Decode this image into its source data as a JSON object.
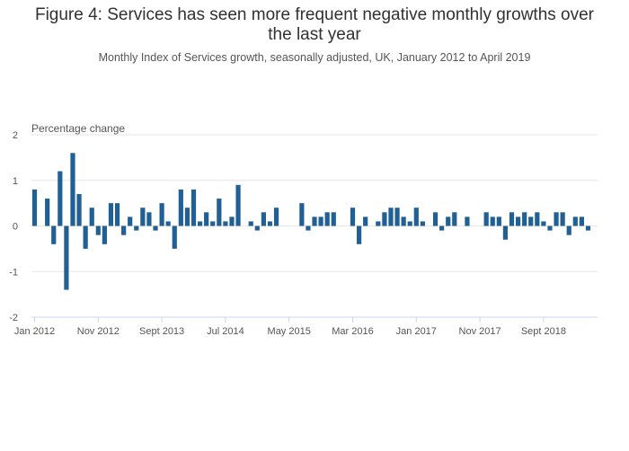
{
  "page": {
    "title_line1": "Figure 4: Services has seen more frequent negative monthly growths over",
    "title_line2": "the last year",
    "subtitle": "Monthly Index of Services growth, seasonally adjusted, UK, January 2012 to April 2019"
  },
  "colors": {
    "bar": "#206095",
    "grid": "#e6e6e6",
    "axis": "#ccd6eb"
  },
  "chart_data": {
    "type": "bar",
    "title": "Figure 4: Services has seen more frequent negative monthly growths over the last year",
    "subtitle": "Monthly Index of Services growth, seasonally adjusted, UK, January 2012 to April 2019",
    "ylabel": "Percentage change",
    "xlabel": "",
    "ylim": [
      -2,
      2
    ],
    "yticks": [
      2,
      1,
      0,
      -1,
      -2
    ],
    "grid": true,
    "legend": "none",
    "x_tick_labels": [
      {
        "index": 0,
        "label": "Jan 2012"
      },
      {
        "index": 10,
        "label": "Nov 2012"
      },
      {
        "index": 20,
        "label": "Sept 2013"
      },
      {
        "index": 30,
        "label": "Jul 2014"
      },
      {
        "index": 40,
        "label": "May 2015"
      },
      {
        "index": 50,
        "label": "Mar 2016"
      },
      {
        "index": 60,
        "label": "Jan 2017"
      },
      {
        "index": 70,
        "label": "Nov 2017"
      },
      {
        "index": 80,
        "label": "Sept 2018"
      }
    ],
    "values": [
      0.8,
      0.0,
      0.6,
      -0.4,
      1.2,
      -1.4,
      1.6,
      0.7,
      -0.5,
      0.4,
      -0.2,
      -0.4,
      0.5,
      0.5,
      -0.2,
      0.2,
      -0.1,
      0.4,
      0.3,
      -0.1,
      0.5,
      0.1,
      -0.5,
      0.8,
      0.4,
      0.8,
      0.1,
      0.3,
      0.1,
      0.6,
      0.1,
      0.2,
      0.9,
      0.0,
      0.1,
      -0.1,
      0.3,
      0.1,
      0.4,
      0.0,
      0.0,
      0.0,
      0.5,
      -0.1,
      0.2,
      0.2,
      0.3,
      0.3,
      0.0,
      0.0,
      0.4,
      -0.4,
      0.2,
      0.0,
      0.1,
      0.3,
      0.4,
      0.4,
      0.2,
      0.1,
      0.4,
      0.1,
      0.0,
      0.3,
      -0.1,
      0.2,
      0.3,
      0.0,
      0.2,
      0.0,
      0.0,
      0.3,
      0.2,
      0.2,
      -0.3,
      0.3,
      0.2,
      0.3,
      0.2,
      0.3,
      0.1,
      -0.1,
      0.3,
      0.3,
      -0.2,
      0.2,
      0.2,
      -0.1
    ]
  }
}
